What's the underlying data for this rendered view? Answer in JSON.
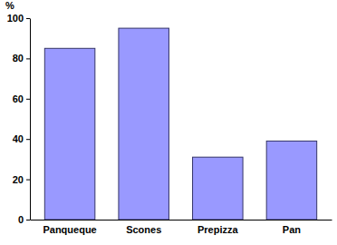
{
  "chart_data": {
    "type": "bar",
    "y_label": "%",
    "categories": [
      "Panqueque",
      "Scones",
      "Prepizza",
      "Pan"
    ],
    "values": [
      85,
      95,
      31,
      39
    ],
    "color": "#9999ff",
    "ylim": [
      0,
      100
    ],
    "yticks": [
      0,
      20,
      40,
      60,
      80,
      100
    ],
    "grid": false
  }
}
